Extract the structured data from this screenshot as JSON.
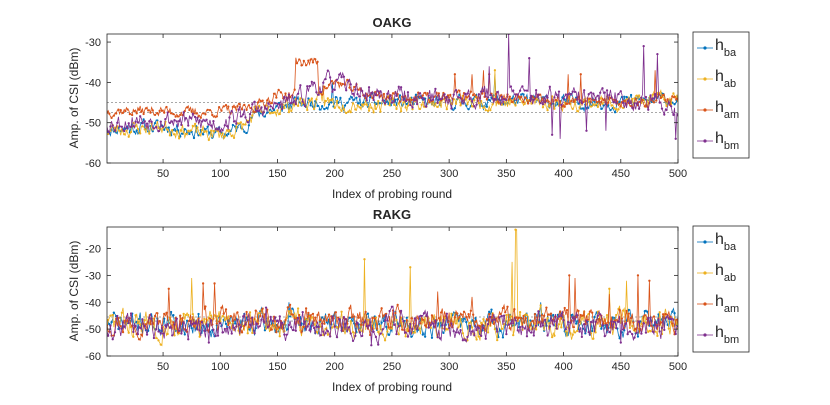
{
  "chart_data": [
    {
      "type": "line",
      "title": "OAKG",
      "xlabel": "Index of probing round",
      "ylabel": "Amp. of CSI (dBm)",
      "xlim": [
        1,
        500
      ],
      "ylim": [
        -60,
        -28
      ],
      "xticks": [
        50,
        100,
        150,
        200,
        250,
        300,
        350,
        400,
        450,
        500
      ],
      "yticks": [
        -30,
        -40,
        -50,
        -60
      ],
      "ref_lines": [
        -45,
        -47.5
      ],
      "legend": {
        "placement": "outside-right"
      },
      "series": [
        {
          "name": "h_ba",
          "base": "h",
          "sub": "ba",
          "color": "#0072BD",
          "seed": 11,
          "keys": [
            [
              1,
              -51.5
            ],
            [
              50,
              -51
            ],
            [
              80,
              -52
            ],
            [
              100,
              -53
            ],
            [
              120,
              -51
            ],
            [
              130,
              -48
            ],
            [
              170,
              -45
            ],
            [
              200,
              -45
            ],
            [
              240,
              -45
            ],
            [
              300,
              -45
            ],
            [
              350,
              -44.5
            ],
            [
              400,
              -45
            ],
            [
              450,
              -45
            ],
            [
              500,
              -44
            ]
          ],
          "noise": 1.4,
          "spikes": [
            [
              198,
              -40
            ],
            [
              340,
              -38
            ]
          ]
        },
        {
          "name": "h_ab",
          "base": "h",
          "sub": "ab",
          "color": "#EDB120",
          "seed": 23,
          "keys": [
            [
              1,
              -52
            ],
            [
              50,
              -51
            ],
            [
              80,
              -52.5
            ],
            [
              100,
              -53
            ],
            [
              120,
              -51
            ],
            [
              130,
              -48
            ],
            [
              170,
              -45
            ],
            [
              200,
              -45
            ],
            [
              240,
              -45.5
            ],
            [
              300,
              -45
            ],
            [
              350,
              -45
            ],
            [
              400,
              -45
            ],
            [
              450,
              -45
            ],
            [
              500,
              -44
            ]
          ],
          "noise": 1.5,
          "spikes": [
            [
              190,
              -41
            ],
            [
              340,
              -37
            ]
          ]
        },
        {
          "name": "h_am",
          "base": "h",
          "sub": "am",
          "color": "#D95319",
          "seed": 37,
          "keys": [
            [
              1,
              -47
            ],
            [
              40,
              -47
            ],
            [
              80,
              -47.5
            ],
            [
              110,
              -47
            ],
            [
              130,
              -46
            ],
            [
              150,
              -43
            ],
            [
              165,
              -43
            ],
            [
              166,
              -35
            ],
            [
              185,
              -35
            ],
            [
              186,
              -42
            ],
            [
              200,
              -40
            ],
            [
              230,
              -43
            ],
            [
              280,
              -44
            ],
            [
              320,
              -43
            ],
            [
              350,
              -44
            ],
            [
              400,
              -45
            ],
            [
              450,
              -45
            ],
            [
              500,
              -44
            ]
          ],
          "noise": 1.1,
          "spikes": [
            [
              305,
              -38
            ],
            [
              320,
              -38
            ],
            [
              330,
              -37
            ],
            [
              335,
              -38
            ],
            [
              404,
              -38
            ],
            [
              415,
              -38
            ],
            [
              480,
              -37
            ]
          ]
        },
        {
          "name": "h_bm",
          "base": "h",
          "sub": "bm",
          "color": "#7E2F8E",
          "seed": 53,
          "keys": [
            [
              1,
              -50
            ],
            [
              50,
              -49
            ],
            [
              80,
              -50
            ],
            [
              100,
              -50
            ],
            [
              120,
              -48
            ],
            [
              150,
              -46
            ],
            [
              170,
              -44
            ],
            [
              180,
              -41
            ],
            [
              200,
              -40
            ],
            [
              230,
              -43
            ],
            [
              280,
              -44
            ],
            [
              300,
              -44
            ],
            [
              330,
              -43
            ],
            [
              400,
              -44
            ],
            [
              450,
              -44
            ],
            [
              500,
              -46
            ]
          ],
          "noise": 2.0,
          "spikes": [
            [
              335,
              -36
            ],
            [
              352,
              -28
            ],
            [
              370,
              -34
            ],
            [
              390,
              -53
            ],
            [
              397,
              -54
            ],
            [
              420,
              -52
            ],
            [
              437,
              -52
            ],
            [
              470,
              -31
            ],
            [
              482,
              -33
            ],
            [
              498,
              -54
            ]
          ]
        }
      ]
    },
    {
      "type": "line",
      "title": "RAKG",
      "xlabel": "Index of probing round",
      "ylabel": "Amp. of CSI (dBm)",
      "xlim": [
        1,
        500
      ],
      "ylim": [
        -60,
        -12
      ],
      "xticks": [
        50,
        100,
        150,
        200,
        250,
        300,
        350,
        400,
        450,
        500
      ],
      "yticks": [
        -20,
        -30,
        -40,
        -50,
        -60
      ],
      "ref_lines": [
        -45.5,
        -47
      ],
      "legend": {
        "placement": "outside-right"
      },
      "series": [
        {
          "name": "h_ba",
          "base": "h",
          "sub": "ba",
          "color": "#0072BD",
          "seed": 71,
          "keys": [
            [
              1,
              -48
            ],
            [
              500,
              -48
            ]
          ],
          "noise": 3.5,
          "spikes": [
            [
              160,
              -40
            ],
            [
              380,
              -40
            ]
          ]
        },
        {
          "name": "h_ab",
          "base": "h",
          "sub": "ab",
          "color": "#EDB120",
          "seed": 83,
          "keys": [
            [
              1,
              -48
            ],
            [
              500,
              -48
            ]
          ],
          "noise": 4.0,
          "spikes": [
            [
              75,
              -31
            ],
            [
              226,
              -24
            ],
            [
              266,
              -27
            ],
            [
              355,
              -25
            ],
            [
              358,
              -13
            ],
            [
              359,
              -13
            ],
            [
              440,
              -35
            ],
            [
              455,
              -32
            ]
          ]
        },
        {
          "name": "h_am",
          "base": "h",
          "sub": "am",
          "color": "#D95319",
          "seed": 97,
          "keys": [
            [
              1,
              -47
            ],
            [
              500,
              -47
            ]
          ],
          "noise": 3.5,
          "spikes": [
            [
              55,
              -35
            ],
            [
              85,
              -33
            ],
            [
              95,
              -33
            ],
            [
              290,
              -36
            ],
            [
              320,
              -38
            ],
            [
              405,
              -30
            ],
            [
              410,
              -31
            ],
            [
              440,
              -37
            ],
            [
              465,
              -30
            ],
            [
              475,
              -32
            ]
          ]
        },
        {
          "name": "h_bm",
          "base": "h",
          "sub": "bm",
          "color": "#7E2F8E",
          "seed": 109,
          "keys": [
            [
              1,
              -49
            ],
            [
              500,
              -49
            ]
          ],
          "noise": 3.8,
          "spikes": [
            [
              232,
              -56
            ],
            [
              90,
              -55
            ],
            [
              450,
              -55
            ],
            [
              140,
              -42
            ]
          ]
        }
      ]
    }
  ]
}
